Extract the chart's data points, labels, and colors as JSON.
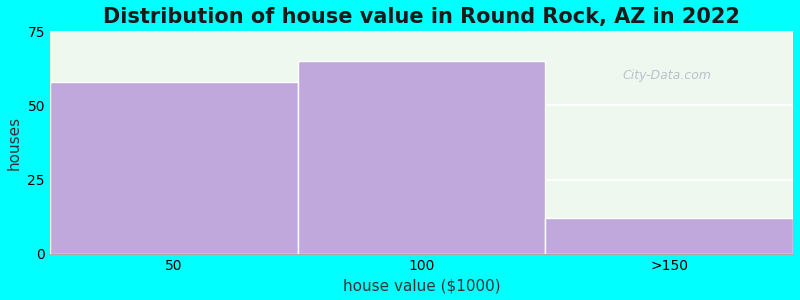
{
  "title": "Distribution of house value in Round Rock, AZ in 2022",
  "xlabel": "house value ($1000)",
  "ylabel": "houses",
  "categories": [
    "50",
    "100",
    ">150"
  ],
  "values": [
    58,
    65,
    12
  ],
  "bar_color": "#c0a8dc",
  "bar_edgecolor": "#ffffff",
  "background_color": "#00ffff",
  "plot_bg_color": "#eef8ee",
  "ylim": [
    0,
    75
  ],
  "yticks": [
    0,
    25,
    50,
    75
  ],
  "title_fontsize": 15,
  "label_fontsize": 11,
  "tick_fontsize": 10,
  "grid_color": "#ffffff",
  "watermark": "City-Data.com",
  "xlim": [
    0,
    3
  ],
  "bar_lefts": [
    0,
    1,
    2
  ],
  "bar_width": 1.0,
  "xtick_positions": [
    0.5,
    1.5,
    2.5
  ],
  "xtick_labels": [
    "50",
    "100",
    ">150"
  ]
}
